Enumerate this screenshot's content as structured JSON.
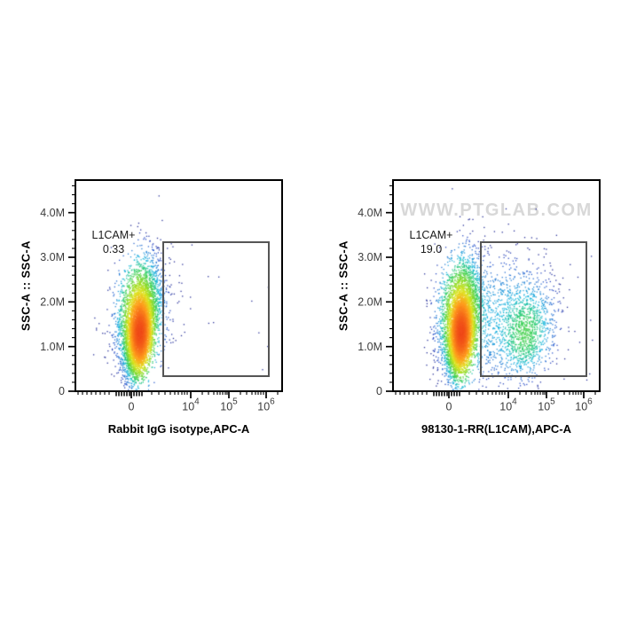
{
  "colors": {
    "background": "#ffffff",
    "frame": "#000000",
    "gate_stroke": "#555555",
    "tick_label": "#3c3c3c",
    "axis_title": "#000000",
    "gate_label": "#1a1a1a",
    "watermark": "#d8d8d8",
    "density_stops": [
      {
        "t": 0.0,
        "c": "#1b2492"
      },
      {
        "t": 0.15,
        "c": "#2247c8"
      },
      {
        "t": 0.3,
        "c": "#1f7fd6"
      },
      {
        "t": 0.42,
        "c": "#18b8de"
      },
      {
        "t": 0.54,
        "c": "#2bcd66"
      },
      {
        "t": 0.66,
        "c": "#8ada26"
      },
      {
        "t": 0.76,
        "c": "#dfe41f"
      },
      {
        "t": 0.87,
        "c": "#ff9e1d"
      },
      {
        "t": 1.0,
        "c": "#f14c1b"
      }
    ]
  },
  "chart_data": [
    {
      "type": "scatter",
      "subtype": "flow-cytometry-pseudocolor-density",
      "x_label": "Rabbit IgG isotype,APC-A",
      "y_label": "SSC-A :: SSC-A",
      "x_scale": "biexponential",
      "y_scale": "linear",
      "x_ticks": [
        {
          "text": "0"
        },
        {
          "text": "10",
          "sup": "4"
        },
        {
          "text": "10",
          "sup": "5"
        },
        {
          "text": "10",
          "sup": "6"
        }
      ],
      "y_ticks": [
        {
          "text": "0"
        },
        {
          "text": "1.0M"
        },
        {
          "text": "2.0M"
        },
        {
          "text": "3.0M"
        },
        {
          "text": "4.0M"
        }
      ],
      "y_range": [
        0,
        4730000
      ],
      "x_range_decades": [
        0,
        1000000
      ],
      "gate": {
        "label": "L1CAM+",
        "percent": "0.33"
      },
      "watermark": "",
      "seed": 1337,
      "populations": [
        {
          "name": "main-broad",
          "n": 2500,
          "cx": 0.31,
          "cy": 0.625,
          "sx": 0.05,
          "sy": 0.131,
          "tilt": 0.13
        },
        {
          "name": "main-core",
          "n": 5200,
          "cx": 0.312,
          "cy": 0.73,
          "sx": 0.03,
          "sy": 0.095,
          "tilt": 0.13
        },
        {
          "name": "halo",
          "n": 330,
          "cx": 0.308,
          "cy": 0.65,
          "sx": 0.08,
          "sy": 0.175,
          "tilt": 0.13
        },
        {
          "name": "gate-edge-tail",
          "n": 40,
          "cx": 0.4,
          "cy": 0.7,
          "sx": 0.09,
          "sy": 0.16
        },
        {
          "name": "sparse-events",
          "n": 11,
          "kind": "uniform",
          "x0": 0.46,
          "x1": 0.95,
          "y0": 0.3,
          "y1": 0.9
        }
      ],
      "density_log_range": 6
    },
    {
      "type": "scatter",
      "subtype": "flow-cytometry-pseudocolor-density",
      "x_label": "98130-1-RR(L1CAM),APC-A",
      "y_label": "SSC-A :: SSC-A",
      "x_scale": "biexponential",
      "y_scale": "linear",
      "x_ticks": [
        {
          "text": "0"
        },
        {
          "text": "10",
          "sup": "4"
        },
        {
          "text": "10",
          "sup": "5"
        },
        {
          "text": "10",
          "sup": "6"
        }
      ],
      "y_ticks": [
        {
          "text": "0"
        },
        {
          "text": "1.0M"
        },
        {
          "text": "2.0M"
        },
        {
          "text": "3.0M"
        },
        {
          "text": "4.0M"
        }
      ],
      "y_range": [
        0,
        4730000
      ],
      "x_range_decades": [
        0,
        1000000
      ],
      "gate": {
        "label": "L1CAM+",
        "percent": "19.0"
      },
      "watermark": "WWW.PTGLAB.COM",
      "seed": 2029,
      "populations": [
        {
          "name": "main-broad",
          "n": 2400,
          "cx": 0.328,
          "cy": 0.625,
          "sx": 0.048,
          "sy": 0.131,
          "tilt": 0.1
        },
        {
          "name": "main-core",
          "n": 5000,
          "cx": 0.33,
          "cy": 0.73,
          "sx": 0.03,
          "sy": 0.095,
          "tilt": 0.1
        },
        {
          "name": "halo",
          "n": 330,
          "cx": 0.326,
          "cy": 0.65,
          "sx": 0.078,
          "sy": 0.175,
          "tilt": 0.1
        },
        {
          "name": "positive-diffuse",
          "n": 1150,
          "cx": 0.55,
          "cy": 0.66,
          "sx": 0.13,
          "sy": 0.16
        },
        {
          "name": "positive-blob-low",
          "n": 420,
          "cx": 0.635,
          "cy": 0.765,
          "sx": 0.055,
          "sy": 0.085
        },
        {
          "name": "positive-blob-mid",
          "n": 330,
          "cx": 0.66,
          "cy": 0.67,
          "sx": 0.06,
          "sy": 0.09
        },
        {
          "name": "sparse-events",
          "n": 20,
          "kind": "uniform",
          "x0": 0.42,
          "x1": 0.97,
          "y0": 0.25,
          "y1": 0.95
        }
      ],
      "density_log_range": 6
    }
  ]
}
